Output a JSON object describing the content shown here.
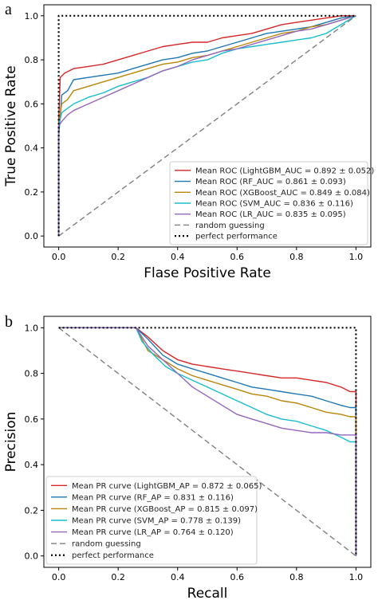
{
  "chart_data": [
    {
      "type": "line",
      "panel_label": "a",
      "xlabel": "Flase Positive Rate",
      "ylabel": "True Positive Rate",
      "xlim": [
        -0.05,
        1.05
      ],
      "ylim": [
        -0.05,
        1.05
      ],
      "xticks": [
        0.0,
        0.2,
        0.4,
        0.6,
        0.8,
        1.0
      ],
      "yticks": [
        0.0,
        0.2,
        0.4,
        0.6,
        0.8,
        1.0
      ],
      "xtick_labels": [
        "0.0",
        "0.2",
        "0.4",
        "0.6",
        "0.8",
        "1.0"
      ],
      "ytick_labels": [
        "0.0",
        "0.2",
        "0.4",
        "0.6",
        "0.8",
        "1.0"
      ],
      "grid": false,
      "legend_position": "lower-right",
      "series": [
        {
          "name": "Mean ROC (LightGBM_AUC = 0.892 ± 0.052)",
          "color": "#d62728",
          "style": "solid",
          "points": [
            [
              0,
              0
            ],
            [
              0,
              0.52
            ],
            [
              0.005,
              0.72
            ],
            [
              0.02,
              0.74
            ],
            [
              0.05,
              0.76
            ],
            [
              0.1,
              0.77
            ],
            [
              0.15,
              0.78
            ],
            [
              0.2,
              0.8
            ],
            [
              0.25,
              0.82
            ],
            [
              0.3,
              0.84
            ],
            [
              0.35,
              0.86
            ],
            [
              0.4,
              0.87
            ],
            [
              0.45,
              0.88
            ],
            [
              0.5,
              0.88
            ],
            [
              0.55,
              0.9
            ],
            [
              0.6,
              0.91
            ],
            [
              0.65,
              0.92
            ],
            [
              0.7,
              0.94
            ],
            [
              0.75,
              0.96
            ],
            [
              0.8,
              0.97
            ],
            [
              0.85,
              0.98
            ],
            [
              0.9,
              0.99
            ],
            [
              0.95,
              1.0
            ],
            [
              1,
              1
            ]
          ]
        },
        {
          "name": "Mean ROC (RF_AUC = 0.861 ± 0.093)",
          "color": "#1f77b4",
          "style": "solid",
          "points": [
            [
              0,
              0
            ],
            [
              0,
              0.45
            ],
            [
              0.01,
              0.64
            ],
            [
              0.03,
              0.66
            ],
            [
              0.05,
              0.71
            ],
            [
              0.1,
              0.72
            ],
            [
              0.15,
              0.73
            ],
            [
              0.2,
              0.74
            ],
            [
              0.25,
              0.76
            ],
            [
              0.3,
              0.78
            ],
            [
              0.35,
              0.8
            ],
            [
              0.4,
              0.81
            ],
            [
              0.45,
              0.83
            ],
            [
              0.5,
              0.84
            ],
            [
              0.55,
              0.86
            ],
            [
              0.6,
              0.88
            ],
            [
              0.65,
              0.9
            ],
            [
              0.7,
              0.92
            ],
            [
              0.75,
              0.93
            ],
            [
              0.8,
              0.94
            ],
            [
              0.85,
              0.95
            ],
            [
              0.9,
              0.97
            ],
            [
              0.95,
              0.99
            ],
            [
              1,
              1
            ]
          ]
        },
        {
          "name": "Mean ROC (XGBoost_AUC = 0.849 ± 0.084)",
          "color": "#b8860b",
          "style": "solid",
          "points": [
            [
              0,
              0
            ],
            [
              0,
              0.5
            ],
            [
              0.01,
              0.6
            ],
            [
              0.03,
              0.62
            ],
            [
              0.05,
              0.66
            ],
            [
              0.1,
              0.68
            ],
            [
              0.15,
              0.7
            ],
            [
              0.2,
              0.72
            ],
            [
              0.25,
              0.74
            ],
            [
              0.3,
              0.76
            ],
            [
              0.35,
              0.78
            ],
            [
              0.4,
              0.79
            ],
            [
              0.45,
              0.81
            ],
            [
              0.5,
              0.82
            ],
            [
              0.55,
              0.84
            ],
            [
              0.6,
              0.86
            ],
            [
              0.65,
              0.88
            ],
            [
              0.7,
              0.9
            ],
            [
              0.75,
              0.92
            ],
            [
              0.8,
              0.93
            ],
            [
              0.85,
              0.95
            ],
            [
              0.9,
              0.96
            ],
            [
              0.95,
              0.98
            ],
            [
              1,
              1
            ]
          ]
        },
        {
          "name": "Mean ROC (SVM_AUC = 0.836 ± 0.116)",
          "color": "#17becf",
          "style": "solid",
          "points": [
            [
              0,
              0
            ],
            [
              0,
              0.5
            ],
            [
              0.01,
              0.56
            ],
            [
              0.03,
              0.58
            ],
            [
              0.05,
              0.6
            ],
            [
              0.1,
              0.63
            ],
            [
              0.15,
              0.65
            ],
            [
              0.2,
              0.68
            ],
            [
              0.25,
              0.7
            ],
            [
              0.3,
              0.72
            ],
            [
              0.35,
              0.75
            ],
            [
              0.4,
              0.77
            ],
            [
              0.45,
              0.79
            ],
            [
              0.5,
              0.8
            ],
            [
              0.55,
              0.83
            ],
            [
              0.6,
              0.85
            ],
            [
              0.65,
              0.86
            ],
            [
              0.7,
              0.87
            ],
            [
              0.75,
              0.88
            ],
            [
              0.8,
              0.89
            ],
            [
              0.85,
              0.9
            ],
            [
              0.9,
              0.92
            ],
            [
              0.95,
              0.96
            ],
            [
              1,
              1
            ]
          ]
        },
        {
          "name": "Mean ROC (LR_AUC = 0.835 ± 0.095)",
          "color": "#9467bd",
          "style": "solid",
          "points": [
            [
              0,
              0
            ],
            [
              0,
              0.5
            ],
            [
              0.01,
              0.52
            ],
            [
              0.03,
              0.55
            ],
            [
              0.05,
              0.57
            ],
            [
              0.1,
              0.6
            ],
            [
              0.15,
              0.63
            ],
            [
              0.2,
              0.66
            ],
            [
              0.25,
              0.69
            ],
            [
              0.3,
              0.72
            ],
            [
              0.35,
              0.75
            ],
            [
              0.4,
              0.77
            ],
            [
              0.45,
              0.8
            ],
            [
              0.5,
              0.82
            ],
            [
              0.55,
              0.84
            ],
            [
              0.6,
              0.85
            ],
            [
              0.65,
              0.87
            ],
            [
              0.7,
              0.89
            ],
            [
              0.75,
              0.91
            ],
            [
              0.8,
              0.93
            ],
            [
              0.85,
              0.94
            ],
            [
              0.9,
              0.96
            ],
            [
              0.95,
              0.98
            ],
            [
              1,
              1
            ]
          ]
        },
        {
          "name": "random guessing",
          "color": "#808080",
          "style": "dashed",
          "points": [
            [
              0,
              0
            ],
            [
              1,
              1
            ]
          ]
        },
        {
          "name": "perfect performance",
          "color": "#000000",
          "style": "dotted",
          "points": [
            [
              0,
              0
            ],
            [
              0,
              1
            ],
            [
              1,
              1
            ]
          ]
        }
      ]
    },
    {
      "type": "line",
      "panel_label": "b",
      "xlabel": "Recall",
      "ylabel": "Precision",
      "xlim": [
        -0.05,
        1.05
      ],
      "ylim": [
        -0.05,
        1.05
      ],
      "xticks": [
        0.0,
        0.2,
        0.4,
        0.6,
        0.8,
        1.0
      ],
      "yticks": [
        0.0,
        0.2,
        0.4,
        0.6,
        0.8,
        1.0
      ],
      "xtick_labels": [
        "0.0",
        "0.2",
        "0.4",
        "0.6",
        "0.8",
        "1.0"
      ],
      "ytick_labels": [
        "0.0",
        "0.2",
        "0.4",
        "0.6",
        "0.8",
        "1.0"
      ],
      "grid": false,
      "legend_position": "lower-left",
      "series": [
        {
          "name": "Mean PR curve (LightGBM_AP = 0.872 ± 0.065)",
          "color": "#d62728",
          "style": "solid",
          "points": [
            [
              0,
              1
            ],
            [
              0.26,
              1
            ],
            [
              0.3,
              0.96
            ],
            [
              0.35,
              0.9
            ],
            [
              0.4,
              0.86
            ],
            [
              0.45,
              0.84
            ],
            [
              0.5,
              0.83
            ],
            [
              0.55,
              0.82
            ],
            [
              0.6,
              0.81
            ],
            [
              0.65,
              0.8
            ],
            [
              0.7,
              0.79
            ],
            [
              0.75,
              0.78
            ],
            [
              0.8,
              0.78
            ],
            [
              0.85,
              0.77
            ],
            [
              0.9,
              0.76
            ],
            [
              0.95,
              0.74
            ],
            [
              0.98,
              0.72
            ],
            [
              1,
              0.72
            ],
            [
              1,
              0.0
            ]
          ]
        },
        {
          "name": "Mean PR curve (RF_AP = 0.831 ± 0.116)",
          "color": "#1f77b4",
          "style": "solid",
          "points": [
            [
              0,
              1
            ],
            [
              0.26,
              1
            ],
            [
              0.3,
              0.95
            ],
            [
              0.35,
              0.88
            ],
            [
              0.4,
              0.84
            ],
            [
              0.45,
              0.82
            ],
            [
              0.5,
              0.8
            ],
            [
              0.55,
              0.78
            ],
            [
              0.6,
              0.76
            ],
            [
              0.65,
              0.74
            ],
            [
              0.7,
              0.73
            ],
            [
              0.75,
              0.72
            ],
            [
              0.8,
              0.71
            ],
            [
              0.85,
              0.7
            ],
            [
              0.9,
              0.68
            ],
            [
              0.95,
              0.66
            ],
            [
              0.98,
              0.65
            ],
            [
              1,
              0.65
            ],
            [
              1,
              0.0
            ]
          ]
        },
        {
          "name": "Mean PR curve (XGBoost_AP = 0.815 ± 0.097)",
          "color": "#b8860b",
          "style": "solid",
          "points": [
            [
              0,
              1
            ],
            [
              0.26,
              1
            ],
            [
              0.3,
              0.9
            ],
            [
              0.35,
              0.86
            ],
            [
              0.4,
              0.82
            ],
            [
              0.45,
              0.79
            ],
            [
              0.5,
              0.77
            ],
            [
              0.55,
              0.75
            ],
            [
              0.6,
              0.73
            ],
            [
              0.65,
              0.71
            ],
            [
              0.7,
              0.7
            ],
            [
              0.75,
              0.68
            ],
            [
              0.8,
              0.67
            ],
            [
              0.85,
              0.65
            ],
            [
              0.9,
              0.63
            ],
            [
              0.95,
              0.62
            ],
            [
              0.98,
              0.61
            ],
            [
              1,
              0.61
            ],
            [
              1,
              0.0
            ]
          ]
        },
        {
          "name": "Mean PR curve (SVM_AP = 0.778 ± 0.139)",
          "color": "#17becf",
          "style": "solid",
          "points": [
            [
              0,
              1
            ],
            [
              0.26,
              1
            ],
            [
              0.28,
              0.94
            ],
            [
              0.32,
              0.88
            ],
            [
              0.36,
              0.83
            ],
            [
              0.4,
              0.8
            ],
            [
              0.45,
              0.77
            ],
            [
              0.5,
              0.74
            ],
            [
              0.55,
              0.71
            ],
            [
              0.6,
              0.68
            ],
            [
              0.65,
              0.65
            ],
            [
              0.7,
              0.62
            ],
            [
              0.75,
              0.6
            ],
            [
              0.8,
              0.59
            ],
            [
              0.85,
              0.57
            ],
            [
              0.9,
              0.55
            ],
            [
              0.95,
              0.52
            ],
            [
              0.98,
              0.5
            ],
            [
              1,
              0.5
            ],
            [
              1,
              0.0
            ]
          ]
        },
        {
          "name": "Mean PR curve (LR_AP = 0.764 ± 0.120)",
          "color": "#9467bd",
          "style": "solid",
          "points": [
            [
              0,
              1
            ],
            [
              0.26,
              1
            ],
            [
              0.3,
              0.92
            ],
            [
              0.35,
              0.86
            ],
            [
              0.4,
              0.8
            ],
            [
              0.45,
              0.74
            ],
            [
              0.5,
              0.7
            ],
            [
              0.55,
              0.66
            ],
            [
              0.6,
              0.62
            ],
            [
              0.65,
              0.6
            ],
            [
              0.7,
              0.58
            ],
            [
              0.75,
              0.56
            ],
            [
              0.8,
              0.55
            ],
            [
              0.85,
              0.54
            ],
            [
              0.9,
              0.54
            ],
            [
              0.95,
              0.53
            ],
            [
              1,
              0.53
            ],
            [
              1,
              0.0
            ]
          ]
        },
        {
          "name": "random guessing",
          "color": "#808080",
          "style": "dashed",
          "points": [
            [
              0,
              1
            ],
            [
              1,
              0
            ]
          ]
        },
        {
          "name": "perfect performance",
          "color": "#000000",
          "style": "dotted",
          "points": [
            [
              0,
              1
            ],
            [
              1,
              1
            ],
            [
              1,
              0
            ]
          ]
        }
      ]
    }
  ]
}
